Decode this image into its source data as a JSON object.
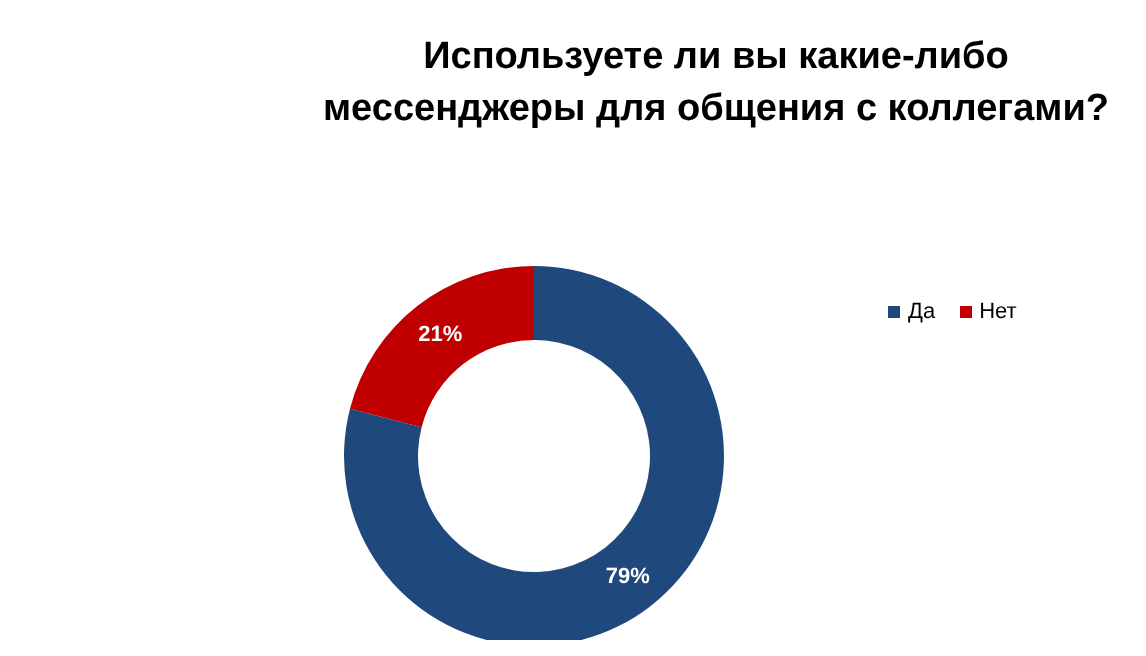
{
  "chart_data": {
    "type": "donut",
    "title": "Используете ли вы какие-либо\nмессенджеры для общения с коллегами?",
    "categories": [
      "Да",
      "Нет"
    ],
    "values": [
      79,
      21
    ],
    "colors": [
      "#1f497d",
      "#c00000"
    ],
    "value_labels": [
      "79%",
      "21%"
    ],
    "legend": "right"
  }
}
